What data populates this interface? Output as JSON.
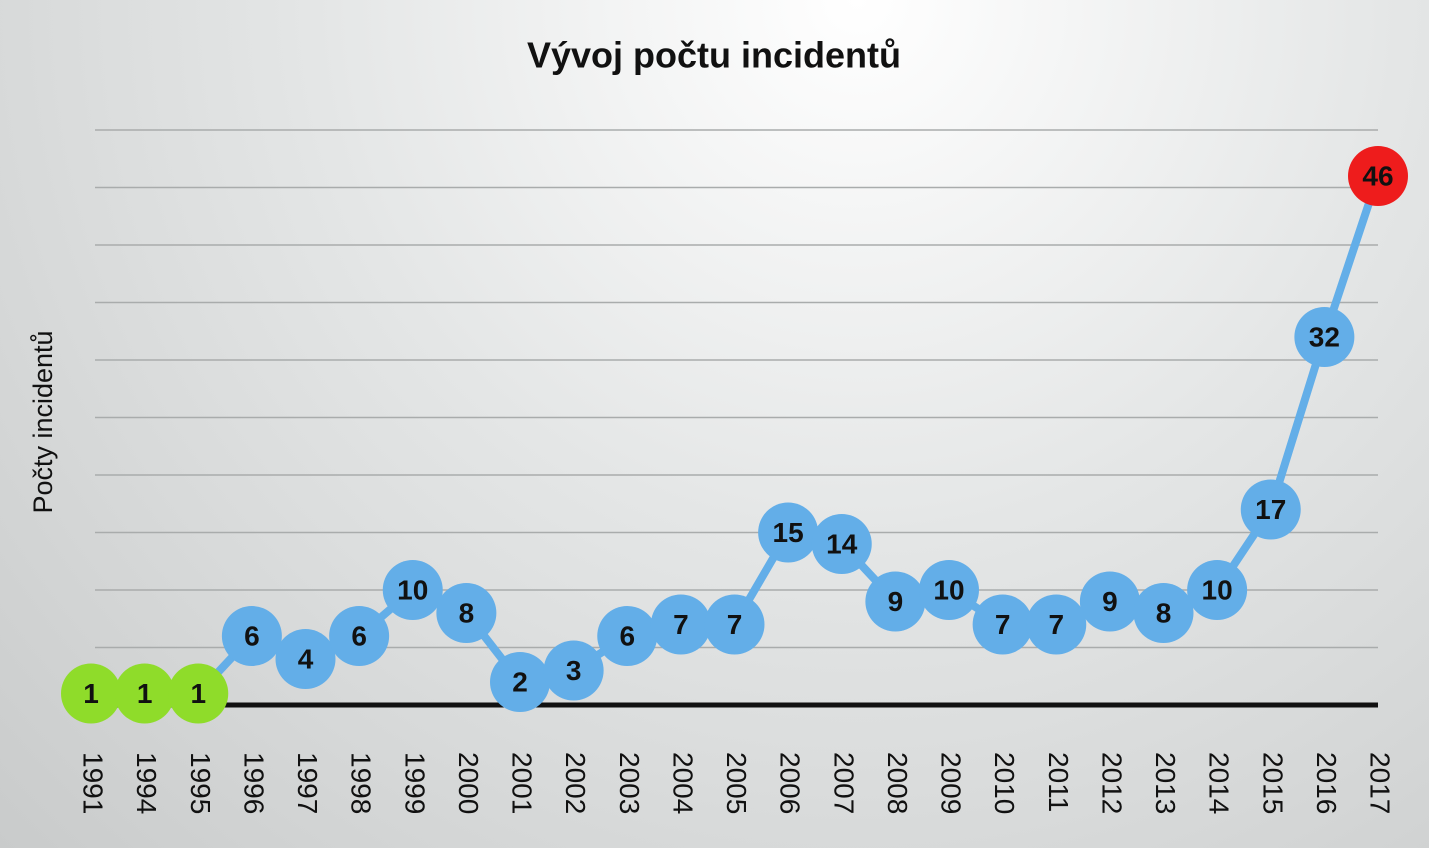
{
  "chart_data": {
    "type": "line",
    "title": "Vývoj počtu incidentů",
    "y_label": "Počty incidentů",
    "categories": [
      "1991",
      "1994",
      "1995",
      "1996",
      "1997",
      "1998",
      "1999",
      "2000",
      "2001",
      "2002",
      "2003",
      "2004",
      "2005",
      "2006",
      "2007",
      "2008",
      "2009",
      "2010",
      "2011",
      "2012",
      "2013",
      "2014",
      "2015",
      "2016",
      "2017"
    ],
    "series": [
      {
        "color": "#63aee8",
        "values": [
          1,
          1,
          1,
          6,
          4,
          6,
          10,
          8,
          2,
          3,
          6,
          7,
          7,
          15,
          14,
          9,
          10,
          7,
          7,
          9,
          8,
          10,
          17,
          32,
          46
        ],
        "marker_colors": [
          "#8fdc2a",
          "#8fdc2a",
          "#8fdc2a",
          "#63aee8",
          "#63aee8",
          "#63aee8",
          "#63aee8",
          "#63aee8",
          "#63aee8",
          "#63aee8",
          "#63aee8",
          "#63aee8",
          "#63aee8",
          "#63aee8",
          "#63aee8",
          "#63aee8",
          "#63aee8",
          "#63aee8",
          "#63aee8",
          "#63aee8",
          "#63aee8",
          "#63aee8",
          "#63aee8",
          "#63aee8",
          "#ee1c1c"
        ]
      }
    ],
    "ylim": [
      0,
      50
    ],
    "yticks": [
      0,
      5,
      10,
      15,
      20,
      25,
      30,
      35,
      40,
      45,
      50
    ],
    "grid": true
  }
}
